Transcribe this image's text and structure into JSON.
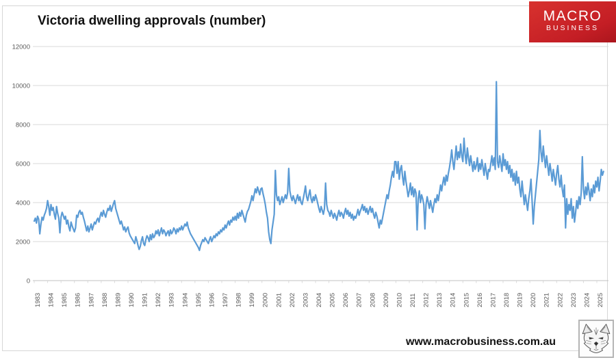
{
  "header": {
    "title": "Victoria dwelling approvals (number)"
  },
  "logo": {
    "line1": "MACRO",
    "line2": "BUSINESS",
    "bg_color": "#c41e25",
    "text_color": "#ffffff"
  },
  "footer": {
    "website": "www.macrobusiness.com.au",
    "logo_icon": "wolf-head-icon"
  },
  "chart_data": {
    "type": "line",
    "title": "Victoria dwelling approvals (number)",
    "xlabel": "",
    "ylabel": "",
    "frequency": "monthly",
    "x_start_year": 1983,
    "x_tick_labels": [
      "1983",
      "1984",
      "1985",
      "1986",
      "1987",
      "1988",
      "1989",
      "1990",
      "1991",
      "1992",
      "1993",
      "1994",
      "1995",
      "1996",
      "1997",
      "1998",
      "1999",
      "2000",
      "2001",
      "2002",
      "2003",
      "2004",
      "2005",
      "2006",
      "2007",
      "2008",
      "2009",
      "2010",
      "2011",
      "2012",
      "2013",
      "2014",
      "2015",
      "2016",
      "2017",
      "2018",
      "2019",
      "2020",
      "2021",
      "2022",
      "2023",
      "2024",
      "2025"
    ],
    "y_ticks": [
      0,
      2000,
      4000,
      6000,
      8000,
      10000,
      12000
    ],
    "ylim": [
      0,
      12000
    ],
    "grid": true,
    "legend": "none",
    "series_name": "Victoria dwelling approvals",
    "series_color": "#5b9bd5",
    "grid_color": "#d9d9d9",
    "axis_line_color": "#c0c0c0",
    "tick_label_color": "#595959",
    "values": [
      3050,
      3200,
      2950,
      3300,
      3150,
      2400,
      2900,
      3250,
      3100,
      3350,
      3500,
      3700,
      4100,
      3800,
      3350,
      3900,
      3600,
      3750,
      3400,
      3150,
      3800,
      3450,
      3200,
      2450,
      3250,
      3500,
      3350,
      3150,
      3300,
      2900,
      3100,
      2750,
      2550,
      3000,
      2800,
      2650,
      2500,
      2700,
      3350,
      3250,
      3500,
      3600,
      3400,
      3500,
      3250,
      3050,
      2800,
      2550,
      2800,
      2500,
      2700,
      2900,
      2600,
      2800,
      3000,
      2900,
      3100,
      3200,
      3000,
      3300,
      3500,
      3300,
      3600,
      3400,
      3250,
      3500,
      3700,
      3600,
      3850,
      3550,
      3750,
      3950,
      4100,
      3700,
      3500,
      3300,
      3100,
      2900,
      3050,
      2850,
      2600,
      2750,
      2500,
      2650,
      2750,
      2450,
      2300,
      2200,
      2100,
      2000,
      1900,
      2250,
      2050,
      1800,
      1600,
      1750,
      2050,
      2250,
      1900,
      1800,
      2100,
      2300,
      2200,
      2000,
      2350,
      2100,
      2400,
      2200,
      2300,
      2550,
      2400,
      2600,
      2300,
      2500,
      2700,
      2400,
      2600,
      2500,
      2300,
      2450,
      2550,
      2300,
      2600,
      2400,
      2500,
      2700,
      2600,
      2400,
      2650,
      2500,
      2700,
      2600,
      2800,
      2600,
      2750,
      2900,
      2800,
      3000,
      2700,
      2550,
      2400,
      2300,
      2200,
      2100,
      2000,
      1900,
      1800,
      1700,
      1550,
      1800,
      1950,
      2100,
      2000,
      2200,
      2100,
      2000,
      1900,
      2100,
      2250,
      2000,
      2150,
      2300,
      2200,
      2400,
      2300,
      2500,
      2400,
      2600,
      2500,
      2700,
      2600,
      2850,
      2700,
      2900,
      3050,
      2850,
      3100,
      3000,
      3250,
      3100,
      3300,
      3100,
      3450,
      3200,
      3500,
      3300,
      3600,
      3400,
      3200,
      3000,
      3350,
      3550,
      3650,
      3850,
      4050,
      4350,
      4100,
      4400,
      4700,
      4500,
      4800,
      4600,
      4400,
      4700,
      4750,
      4450,
      4200,
      3900,
      3500,
      3200,
      2500,
      2100,
      1900,
      2600,
      3000,
      3400,
      5650,
      4400,
      4100,
      4300,
      3900,
      4100,
      4300,
      4000,
      4200,
      4400,
      4200,
      4500,
      5750,
      4600,
      4300,
      4100,
      4350,
      4150,
      3950,
      4200,
      4400,
      4100,
      4300,
      4000,
      3900,
      4200,
      4500,
      4850,
      4300,
      4100,
      4400,
      4650,
      4200,
      4000,
      4300,
      4100,
      4400,
      4200,
      3950,
      3700,
      3500,
      3800,
      3600,
      3400,
      3700,
      5000,
      3900,
      3600,
      3500,
      3300,
      3600,
      3400,
      3200,
      3450,
      3300,
      3100,
      3400,
      3600,
      3300,
      3500,
      3400,
      3200,
      3500,
      3700,
      3400,
      3600,
      3300,
      3500,
      3200,
      3400,
      3100,
      3300,
      3200,
      3400,
      3650,
      3350,
      3550,
      3700,
      3900,
      3600,
      3800,
      3500,
      3700,
      3400,
      3600,
      3800,
      3500,
      3700,
      3400,
      3200,
      3500,
      3300,
      3000,
      2700,
      3100,
      2900,
      3200,
      3500,
      3800,
      4100,
      4400,
      4200,
      4600,
      4900,
      5300,
      5600,
      5300,
      6100,
      6100,
      5500,
      6100,
      5200,
      5700,
      5900,
      5300,
      4900,
      5600,
      5100,
      4700,
      4300,
      4600,
      5000,
      4400,
      4800,
      4300,
      4700,
      4500,
      2600,
      4200,
      4600,
      4000,
      4400,
      4200,
      3900,
      2650,
      3900,
      4300,
      4000,
      3700,
      4100,
      3800,
      3500,
      3900,
      4200,
      4000,
      4400,
      4100,
      4500,
      4900,
      4600,
      5000,
      5300,
      4900,
      5400,
      5100,
      5500,
      5800,
      6200,
      6700,
      6100,
      5700,
      6300,
      6900,
      6200,
      6600,
      6300,
      7000,
      6400,
      6100,
      7300,
      6500,
      6000,
      6800,
      6300,
      5900,
      6400,
      6000,
      5600,
      6100,
      5700,
      5900,
      6300,
      5600,
      6000,
      5700,
      6200,
      5800,
      5400,
      6000,
      5600,
      5200,
      5700,
      5600,
      6000,
      6400,
      5900,
      6300,
      5700,
      10200,
      6100,
      5800,
      6400,
      6000,
      5600,
      6500,
      5900,
      6200,
      5700,
      6100,
      5500,
      5900,
      5300,
      5700,
      5100,
      5500,
      4900,
      5600,
      5000,
      5300,
      4700,
      4300,
      5100,
      4500,
      3900,
      4400,
      4000,
      3600,
      4200,
      4600,
      5200,
      4100,
      2900,
      3800,
      4400,
      5000,
      5600,
      6200,
      7700,
      6600,
      6100,
      6900,
      6300,
      5800,
      6400,
      5900,
      5400,
      6000,
      5600,
      5100,
      5700,
      5300,
      4900,
      5500,
      5900,
      5200,
      4800,
      5400,
      4700,
      4300,
      4900,
      2700,
      4200,
      3400,
      3900,
      3600,
      4200,
      3200,
      3800,
      3000,
      3500,
      4100,
      3700,
      4300,
      3900,
      4500,
      6350,
      4700,
      4200,
      4800,
      4400,
      5000,
      4600,
      4100,
      4700,
      4300,
      4900,
      4500,
      5100,
      4800,
      5300,
      4600,
      5100,
      5700,
      5400,
      5600
    ]
  }
}
